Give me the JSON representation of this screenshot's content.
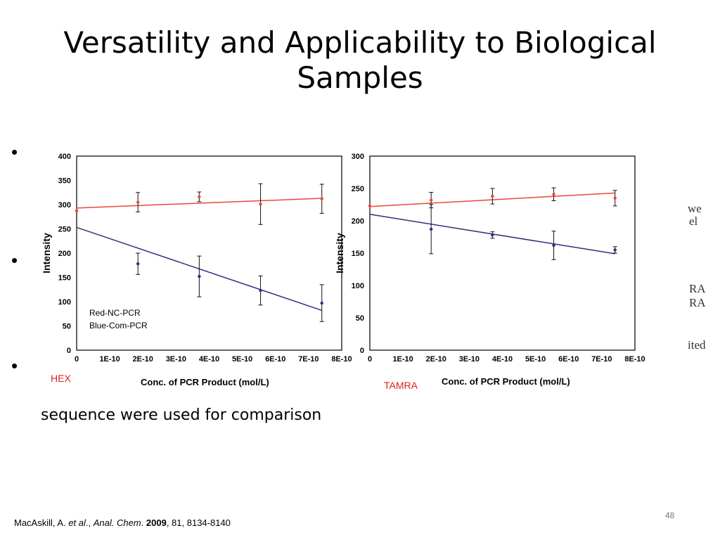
{
  "slide": {
    "title": "Versatility and Applicability to Biological Samples",
    "body_text": "sequence were used for comparison",
    "partial_text": [
      "we",
      "el",
      "RA",
      "RA",
      "ited"
    ],
    "footer": {
      "author": "MacAskill, A.",
      "etal": "et al",
      "sep": ".,",
      "journal": "Anal. Chem",
      "year": "2009",
      "rest": ", 81, 8134-8140"
    },
    "page_number": "48"
  },
  "colors": {
    "red_series": "#e8473a",
    "blue_series": "#2d2f7e",
    "dye_label": "#e0201a"
  },
  "chart_data": [
    {
      "type": "scatter",
      "dye_label": "HEX",
      "ylabel": "Intensity",
      "xlabel": "Conc. of PCR Product (mol/L)",
      "ylim": [
        0,
        400
      ],
      "yticks": [
        0,
        50,
        100,
        150,
        200,
        250,
        300,
        350,
        400
      ],
      "xlim": [
        0,
        8e-10
      ],
      "xticks": [
        "0",
        "1E-10",
        "2E-10",
        "3E-10",
        "4E-10",
        "5E-10",
        "6E-10",
        "7E-10",
        "8E-10"
      ],
      "legend": [
        "Red-NC-PCR",
        "Blue-Com-PCR"
      ],
      "series": [
        {
          "color": "#e8473a",
          "points": [
            {
              "x": 0,
              "y": 287,
              "err": 0
            },
            {
              "x": 1.85e-10,
              "y": 305,
              "err": 20
            },
            {
              "x": 3.7e-10,
              "y": 316,
              "err": 10
            },
            {
              "x": 5.55e-10,
              "y": 301,
              "err": 42
            },
            {
              "x": 7.4e-10,
              "y": 312,
              "err": 30
            }
          ],
          "fit": [
            [
              0,
              293
            ],
            [
              7.4e-10,
              313
            ]
          ]
        },
        {
          "color": "#2d2f7e",
          "points": [
            {
              "x": 1.85e-10,
              "y": 178,
              "err": 22
            },
            {
              "x": 3.7e-10,
              "y": 152,
              "err": 42
            },
            {
              "x": 5.55e-10,
              "y": 123,
              "err": 30
            },
            {
              "x": 7.4e-10,
              "y": 97,
              "err": 38
            }
          ],
          "fit": [
            [
              0,
              253
            ],
            [
              7.4e-10,
              82
            ]
          ]
        }
      ]
    },
    {
      "type": "scatter",
      "dye_label": "TAMRA",
      "ylabel": "Intensity",
      "xlabel": "Conc. of PCR Product (mol/L)",
      "ylim": [
        0,
        300
      ],
      "yticks": [
        0,
        50,
        100,
        150,
        200,
        250,
        300
      ],
      "xlim": [
        0,
        8e-10
      ],
      "xticks": [
        "0",
        "1E-10",
        "2E-10",
        "3E-10",
        "4E-10",
        "5E-10",
        "6E-10",
        "7E-10",
        "8E-10"
      ],
      "series": [
        {
          "color": "#e8473a",
          "points": [
            {
              "x": 0,
              "y": 223,
              "err": 0
            },
            {
              "x": 1.85e-10,
              "y": 232,
              "err": 12
            },
            {
              "x": 3.7e-10,
              "y": 238,
              "err": 12
            },
            {
              "x": 5.55e-10,
              "y": 241,
              "err": 10
            },
            {
              "x": 7.4e-10,
              "y": 235,
              "err": 12
            }
          ],
          "fit": [
            [
              0,
              222
            ],
            [
              7.4e-10,
              243
            ]
          ]
        },
        {
          "color": "#2d2f7e",
          "points": [
            {
              "x": 1.85e-10,
              "y": 187,
              "err": 38
            },
            {
              "x": 3.7e-10,
              "y": 178,
              "err": 5
            },
            {
              "x": 5.55e-10,
              "y": 162,
              "err": 22
            },
            {
              "x": 7.4e-10,
              "y": 155,
              "err": 5
            }
          ],
          "fit": [
            [
              0,
              210
            ],
            [
              7.4e-10,
              149
            ]
          ]
        }
      ]
    }
  ]
}
